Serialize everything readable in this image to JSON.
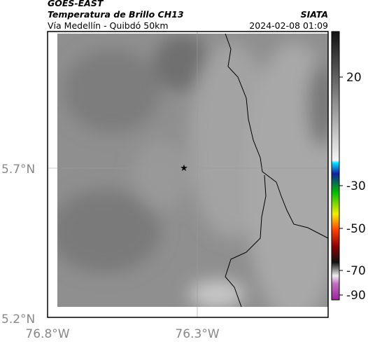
{
  "header": {
    "title": "GOES-EAST",
    "subtitle": "Temperatura de Brillo CH13",
    "route": "Vía Medellín - Quibdó 50km",
    "source": "SIATA",
    "timestamp": "2024-02-08 01:09"
  },
  "axes": {
    "lat_labels": [
      "5.7°N",
      "5.2°N"
    ],
    "lon_labels": [
      "76.8°W",
      "76.3°W"
    ]
  },
  "colorbar": {
    "ticks": [
      20,
      -30,
      -50,
      -70,
      -90
    ]
  }
}
